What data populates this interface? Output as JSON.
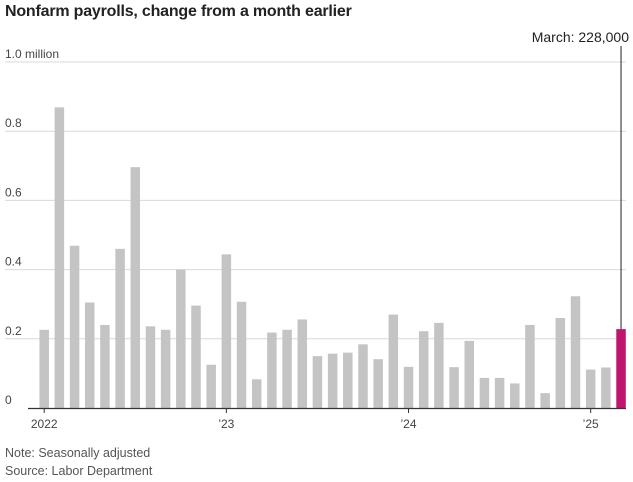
{
  "title": "Nonfarm payrolls, change from a month earlier",
  "note": "Note: Seasonally adjusted",
  "source": "Source: Labor Department",
  "colors": {
    "bar": "#c4c4c4",
    "highlight": "#c0146f",
    "grid": "#d9d9d9",
    "axis": "#333333"
  },
  "chart_data": {
    "type": "bar",
    "title": "Nonfarm payrolls, change from a month earlier",
    "units": "millions",
    "ylim": [
      0,
      1.0
    ],
    "y_ticks": [
      {
        "value": 0,
        "label": "0"
      },
      {
        "value": 0.2,
        "label": "0.2"
      },
      {
        "value": 0.4,
        "label": "0.4"
      },
      {
        "value": 0.6,
        "label": "0.6"
      },
      {
        "value": 0.8,
        "label": "0.8"
      },
      {
        "value": 1.0,
        "label": "1.0 million"
      }
    ],
    "x_ticks": [
      {
        "index": 0,
        "label": "2022"
      },
      {
        "index": 12,
        "label": "’23"
      },
      {
        "index": 24,
        "label": "’24"
      },
      {
        "index": 36,
        "label": "’25"
      }
    ],
    "categories": [
      "Jan 2022",
      "Feb 2022",
      "Mar 2022",
      "Apr 2022",
      "May 2022",
      "Jun 2022",
      "Jul 2022",
      "Aug 2022",
      "Sep 2022",
      "Oct 2022",
      "Nov 2022",
      "Dec 2022",
      "Jan 2023",
      "Feb 2023",
      "Mar 2023",
      "Apr 2023",
      "May 2023",
      "Jun 2023",
      "Jul 2023",
      "Aug 2023",
      "Sep 2023",
      "Oct 2023",
      "Nov 2023",
      "Dec 2023",
      "Jan 2024",
      "Feb 2024",
      "Mar 2024",
      "Apr 2024",
      "May 2024",
      "Jun 2024",
      "Jul 2024",
      "Aug 2024",
      "Sep 2024",
      "Oct 2024",
      "Nov 2024",
      "Dec 2024",
      "Jan 2025",
      "Feb 2025",
      "Mar 2025"
    ],
    "values": [
      0.226,
      0.869,
      0.469,
      0.305,
      0.24,
      0.46,
      0.696,
      0.236,
      0.226,
      0.4,
      0.296,
      0.125,
      0.444,
      0.307,
      0.083,
      0.218,
      0.226,
      0.256,
      0.15,
      0.157,
      0.16,
      0.184,
      0.141,
      0.27,
      0.119,
      0.222,
      0.246,
      0.118,
      0.194,
      0.087,
      0.087,
      0.071,
      0.24,
      0.043,
      0.26,
      0.323,
      0.111,
      0.117,
      0.228
    ],
    "highlight_index": 38,
    "annotation": "March: 228,000"
  }
}
